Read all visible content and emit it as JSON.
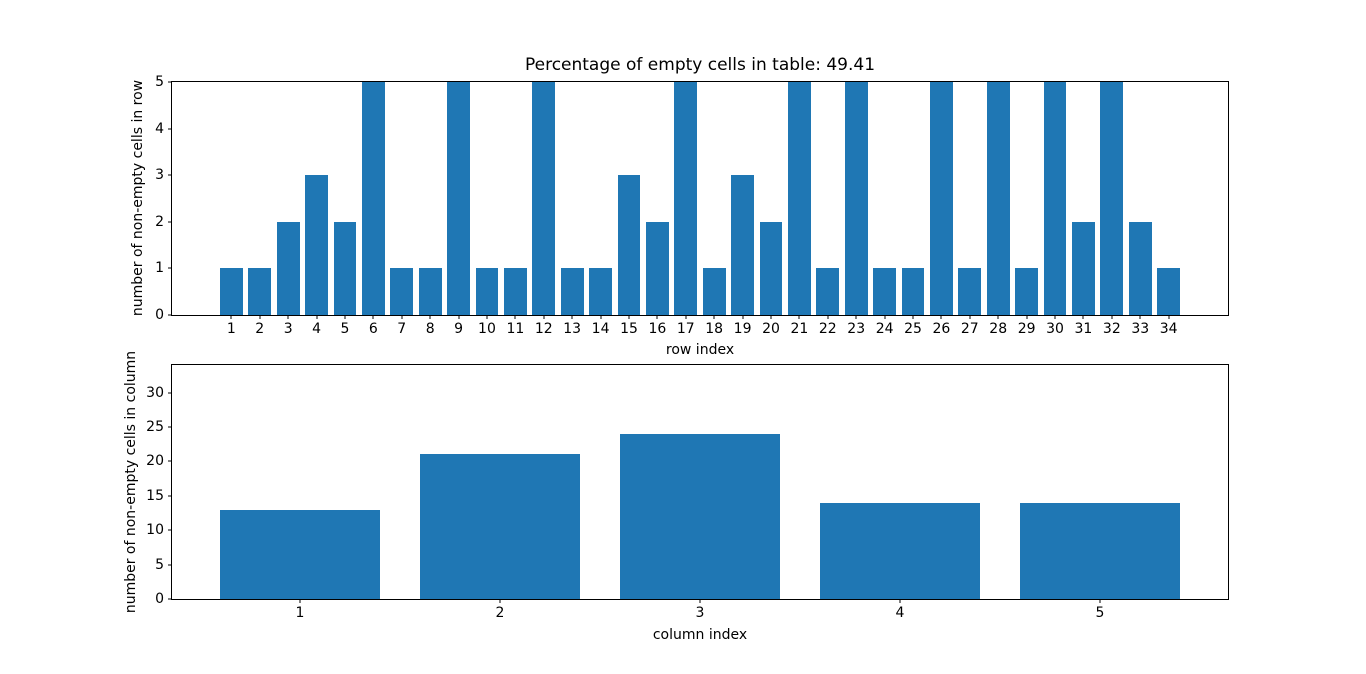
{
  "colors": {
    "bar": "#1f77b4",
    "spine": "#000000",
    "text": "#000000",
    "background": "#ffffff"
  },
  "chart_data": [
    {
      "type": "bar",
      "title": "Percentage of empty cells in table: 49.41",
      "xlabel": "row index",
      "ylabel": "number of non-empty cells in row",
      "categories": [
        "1",
        "2",
        "3",
        "4",
        "5",
        "6",
        "7",
        "8",
        "9",
        "10",
        "11",
        "12",
        "13",
        "14",
        "15",
        "16",
        "17",
        "18",
        "19",
        "20",
        "21",
        "22",
        "23",
        "24",
        "25",
        "26",
        "27",
        "28",
        "29",
        "30",
        "31",
        "32",
        "33",
        "34"
      ],
      "values": [
        1,
        1,
        2,
        3,
        2,
        5,
        1,
        1,
        5,
        1,
        1,
        5,
        1,
        1,
        3,
        2,
        5,
        1,
        3,
        2,
        5,
        1,
        5,
        1,
        1,
        5,
        1,
        5,
        1,
        5,
        2,
        5,
        2,
        1
      ],
      "ylim": [
        0,
        5
      ],
      "yticks": [
        0,
        1,
        2,
        3,
        4,
        5
      ],
      "xlim": [
        -1.09,
        36.09
      ],
      "bar_width": 0.8,
      "grid": false,
      "legend": null
    },
    {
      "type": "bar",
      "title": "",
      "xlabel": "column index",
      "ylabel": "number of non-empty cells in column",
      "categories": [
        "1",
        "2",
        "3",
        "4",
        "5"
      ],
      "values": [
        13,
        21,
        24,
        14,
        14
      ],
      "ylim": [
        0,
        34
      ],
      "yticks": [
        0,
        5,
        10,
        15,
        20,
        25,
        30
      ],
      "xlim": [
        0.36,
        5.64
      ],
      "bar_width": 0.8,
      "grid": false,
      "legend": null
    }
  ]
}
